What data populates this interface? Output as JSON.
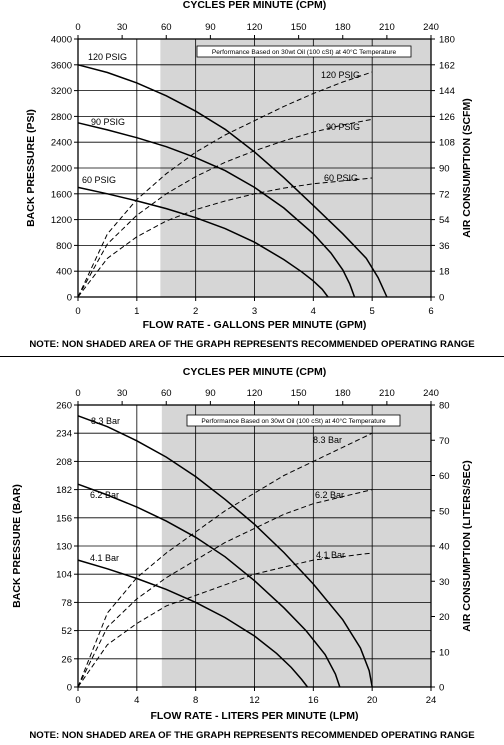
{
  "chart_data": [
    {
      "type": "line",
      "title": "",
      "top_axis_label": "CYCLES PER MINUTE (CPM)",
      "top_ticks": [
        "0",
        "30",
        "60",
        "90",
        "120",
        "150",
        "180",
        "210",
        "240"
      ],
      "xlabel": "FLOW RATE -  GALLONS PER MINUTE (GPM)",
      "xlim": [
        0,
        6
      ],
      "xticks": [
        "0",
        "1",
        "2",
        "3",
        "4",
        "5",
        "6"
      ],
      "ylabel": "BACK PRESSURE (PSI)",
      "ylim": [
        0,
        4000
      ],
      "yticks": [
        "0",
        "400",
        "800",
        "1200",
        "1600",
        "2000",
        "2400",
        "2800",
        "3200",
        "3600",
        "4000"
      ],
      "y2label": "AIR CONSUMPTION (SCFM)",
      "y2lim": [
        0,
        180
      ],
      "y2ticks": [
        "0",
        "18",
        "36",
        "54",
        "72",
        "90",
        "108",
        "126",
        "144",
        "162",
        "180"
      ],
      "shaded_xrange": [
        1.4,
        6
      ],
      "grid": true,
      "annotation": "Performance  Based on 30wt Oil (100 cSt) at 40°C Temperature",
      "note": "NOTE: NON SHADED AREA OF THE GRAPH REPRESENTS RECOMMENDED OPERATING RANGE",
      "pressure_series": [
        {
          "name": "120 PSIG",
          "x": [
            0,
            0.5,
            1.0,
            1.5,
            2.0,
            2.5,
            3.0,
            3.5,
            4.0,
            4.5,
            4.9,
            5.1,
            5.25
          ],
          "y": [
            3600,
            3480,
            3320,
            3120,
            2880,
            2600,
            2250,
            1850,
            1420,
            980,
            600,
            300,
            0
          ]
        },
        {
          "name": "90 PSIG",
          "x": [
            0,
            0.5,
            1.0,
            1.5,
            2.0,
            2.5,
            3.0,
            3.5,
            4.0,
            4.3,
            4.5,
            4.62,
            4.7
          ],
          "y": [
            2700,
            2590,
            2470,
            2330,
            2160,
            1960,
            1700,
            1380,
            980,
            680,
            420,
            200,
            0
          ]
        },
        {
          "name": "60 PSIG",
          "x": [
            0,
            0.5,
            1.0,
            1.5,
            2.0,
            2.5,
            3.0,
            3.5,
            3.8,
            4.0,
            4.15,
            4.25
          ],
          "y": [
            1700,
            1600,
            1490,
            1370,
            1230,
            1060,
            850,
            580,
            390,
            250,
            120,
            0
          ]
        }
      ],
      "air_series": [
        {
          "name": "120 PSIG",
          "x": [
            0,
            0.5,
            1.0,
            1.5,
            2.0,
            2.5,
            3.0,
            3.5,
            4.0,
            4.5,
            5.0
          ],
          "y": [
            0,
            44,
            68,
            86,
            101,
            113,
            123,
            133,
            142,
            150,
            157
          ]
        },
        {
          "name": "90 PSIG",
          "x": [
            0,
            0.5,
            1.0,
            1.5,
            2.0,
            2.5,
            3.0,
            3.5,
            4.0,
            4.5,
            5.0
          ],
          "y": [
            0,
            37,
            57,
            72,
            84,
            94,
            102,
            109,
            115,
            120,
            124
          ]
        },
        {
          "name": "60 PSIG",
          "x": [
            0,
            0.5,
            1.0,
            1.5,
            2.0,
            2.5,
            3.0,
            3.5,
            4.0,
            4.5,
            5.0
          ],
          "y": [
            0,
            27,
            42,
            53,
            61,
            67,
            72,
            76,
            79,
            81,
            83
          ]
        }
      ]
    },
    {
      "type": "line",
      "title": "",
      "top_axis_label": "CYCLES PER MINUTE (CPM)",
      "top_ticks": [
        "0",
        "30",
        "60",
        "90",
        "120",
        "150",
        "180",
        "210",
        "240"
      ],
      "xlabel": "FLOW RATE - LITERS PER MINUTE (LPM)",
      "xlim": [
        0,
        24
      ],
      "xticks": [
        "0",
        "4",
        "8",
        "12",
        "16",
        "20",
        "24"
      ],
      "ylabel": "BACK PRESSURE (BAR)",
      "ylim": [
        0,
        260
      ],
      "yticks": [
        "0",
        "26",
        "52",
        "78",
        "104",
        "130",
        "156",
        "182",
        "208",
        "234",
        "260"
      ],
      "y2label": "AIR CONSUMPTION (LITERS/SEC)",
      "y2lim": [
        0,
        80
      ],
      "y2ticks": [
        "0",
        "10",
        "20",
        "30",
        "40",
        "50",
        "60",
        "70",
        "80"
      ],
      "shaded_xrange": [
        5.7,
        24
      ],
      "grid": true,
      "annotation": "Performance  Based on 30wt Oil (100 cSt) at 40°C Temperature",
      "note": "NOTE: NON SHADED AREA OF THE GRAPH REPRESENTS RECOMMENDED OPERATING RANGE",
      "pressure_series": [
        {
          "name": "8.3 Bar",
          "x": [
            0,
            2,
            4,
            6,
            8,
            10,
            12,
            14,
            16,
            18,
            19.2,
            19.8,
            20.0
          ],
          "y": [
            250,
            240,
            227,
            212,
            194,
            173,
            150,
            124,
            95,
            62,
            36,
            15,
            0
          ]
        },
        {
          "name": "6.2 Bar",
          "x": [
            0,
            2,
            4,
            6,
            8,
            10,
            12,
            14,
            15.5,
            16.8,
            17.5,
            17.8
          ],
          "y": [
            187,
            177,
            166,
            153,
            138,
            120,
            98,
            73,
            52,
            30,
            12,
            0
          ]
        },
        {
          "name": "4.1 Bar",
          "x": [
            0,
            2,
            4,
            6,
            8,
            10,
            12,
            13.5,
            14.5,
            15.2,
            15.6
          ],
          "y": [
            117,
            109,
            100,
            90,
            78,
            64,
            47,
            31,
            18,
            7,
            0
          ]
        }
      ],
      "air_series": [
        {
          "name": "8.3 Bar",
          "x": [
            0,
            2,
            4,
            6,
            8,
            10,
            12,
            14,
            16,
            18,
            20
          ],
          "y": [
            0,
            21,
            31,
            38,
            44,
            50,
            55,
            60,
            64,
            68,
            72
          ]
        },
        {
          "name": "6.2 Bar",
          "x": [
            0,
            2,
            4,
            6,
            8,
            10,
            12,
            14,
            16,
            18,
            20
          ],
          "y": [
            0,
            17,
            25,
            31,
            36,
            41,
            45,
            49,
            52,
            54,
            56
          ]
        },
        {
          "name": "4.1 Bar",
          "x": [
            0,
            2,
            4,
            6,
            8,
            10,
            12,
            14,
            16,
            18,
            20
          ],
          "y": [
            0,
            12,
            18,
            23,
            26,
            29,
            32,
            34,
            36,
            37,
            38
          ]
        }
      ]
    }
  ]
}
